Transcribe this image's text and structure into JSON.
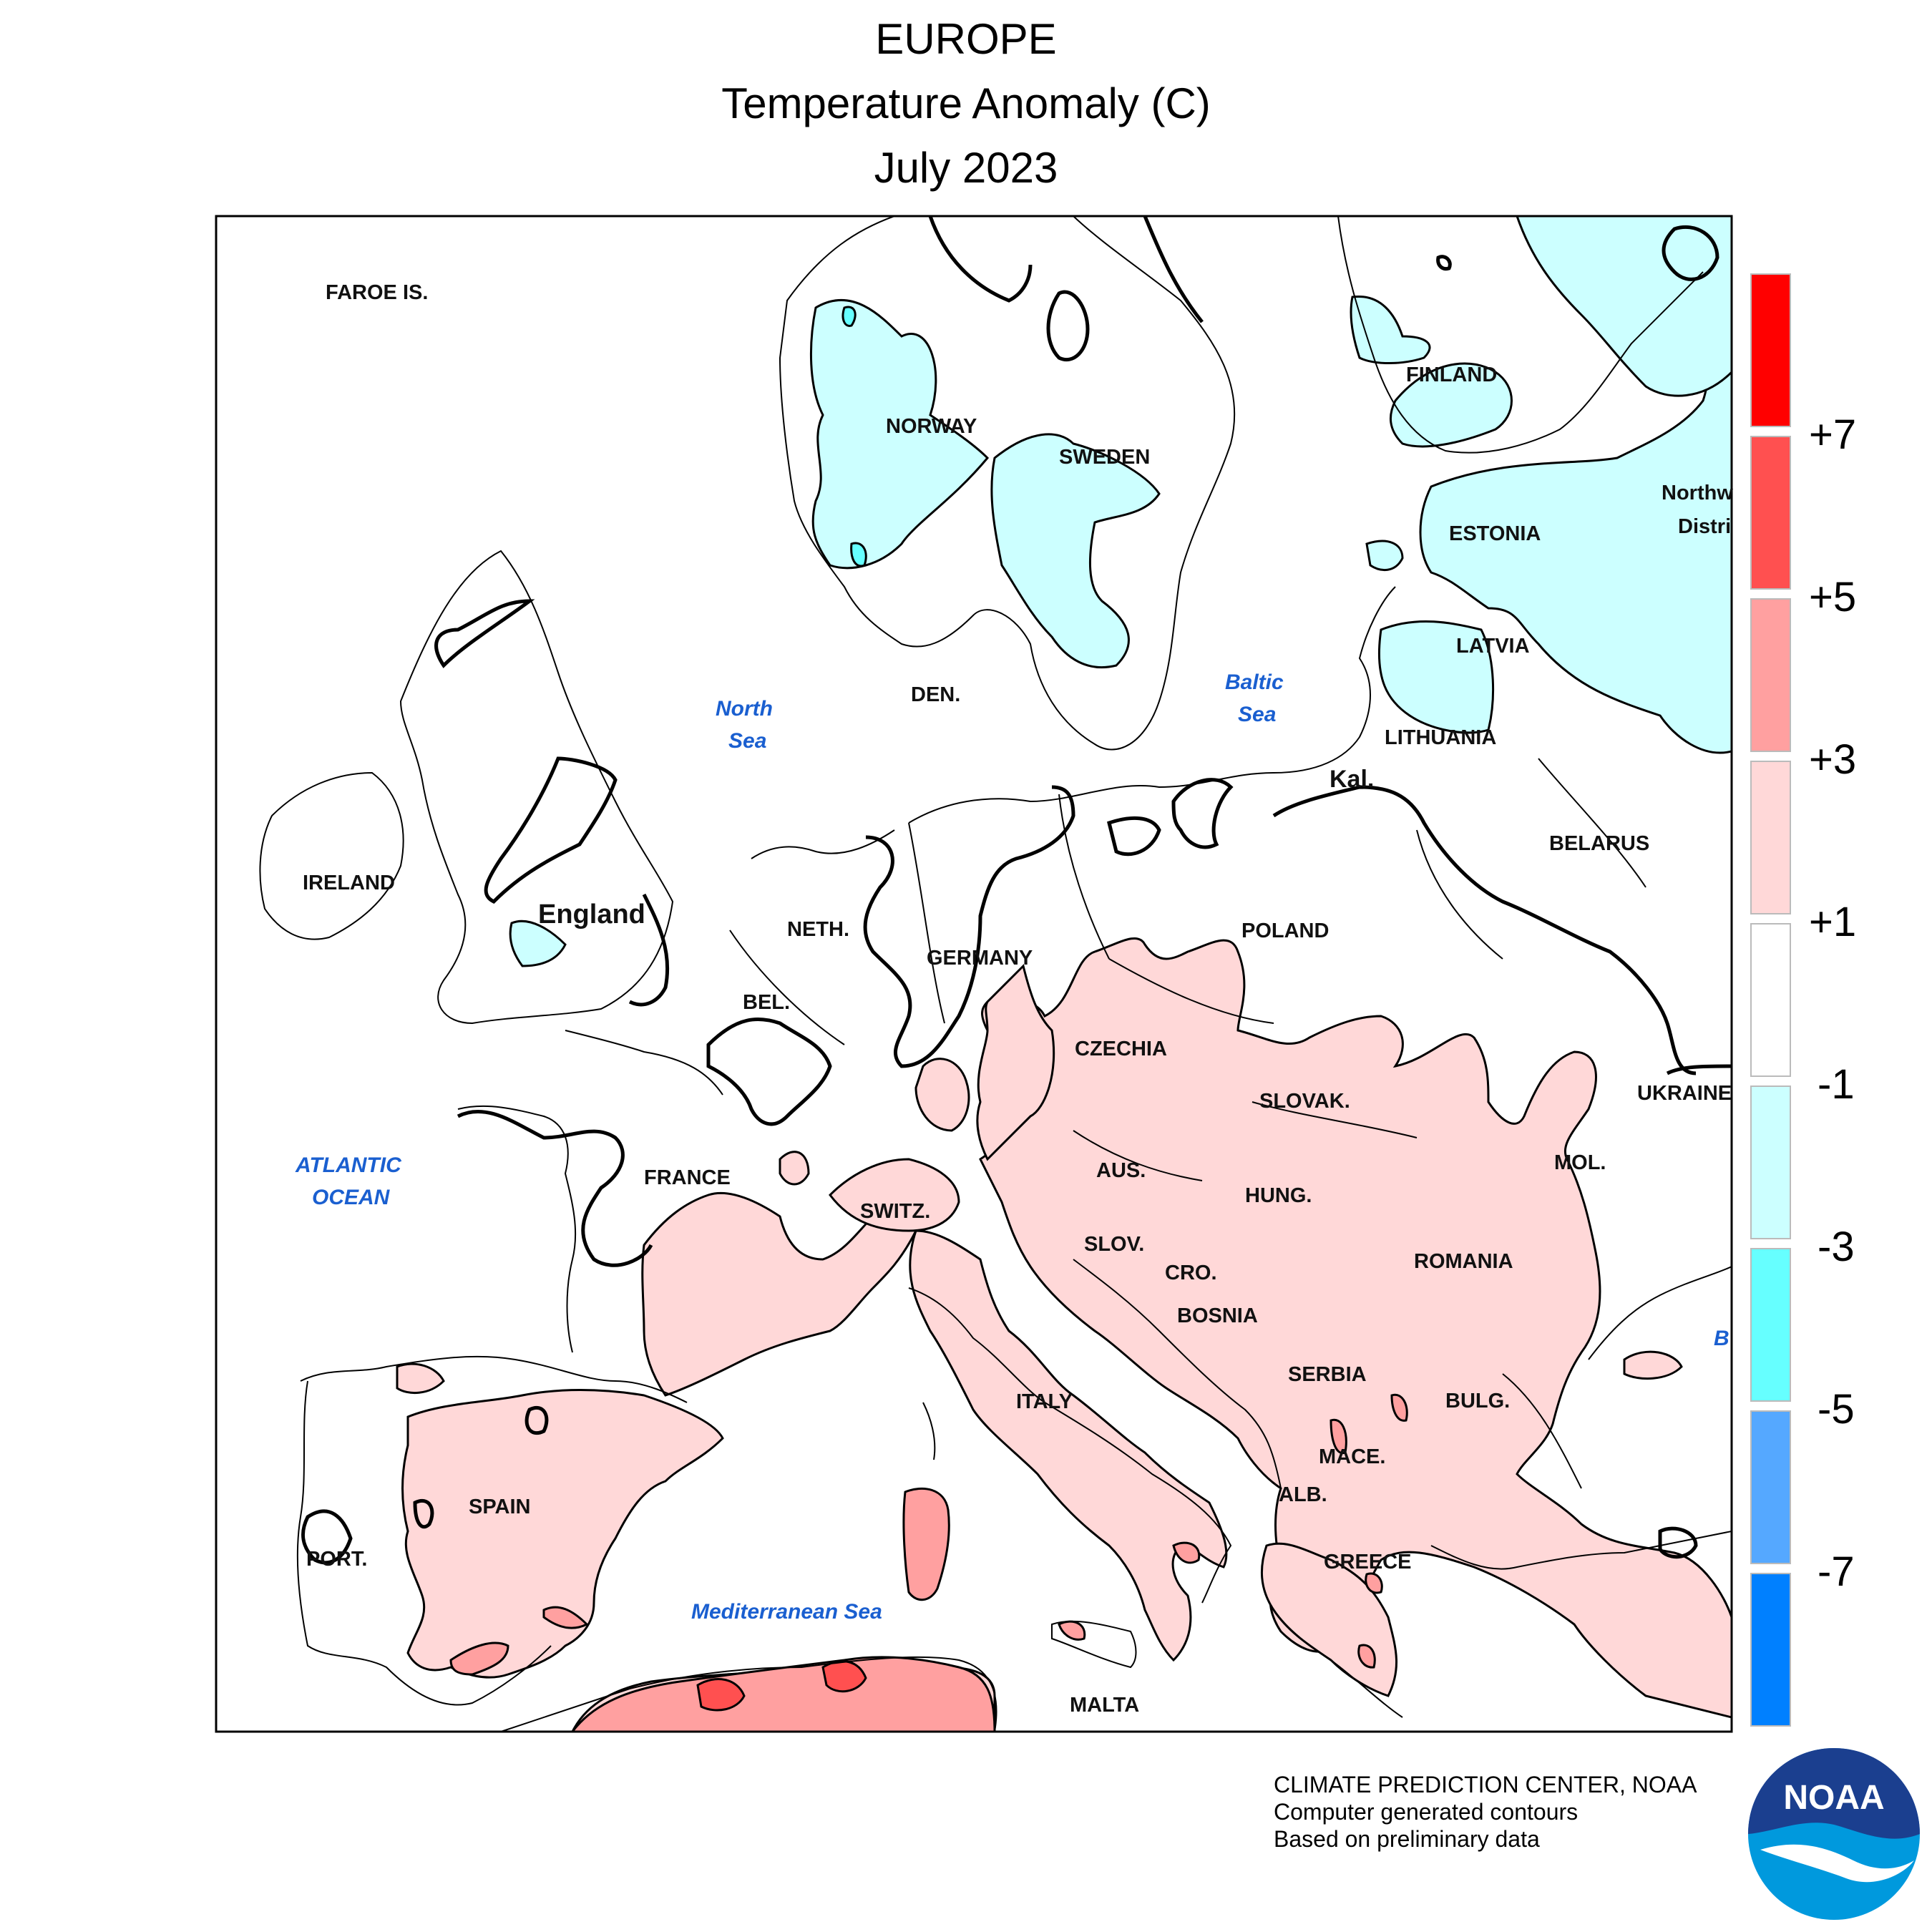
{
  "title": {
    "line1": "EUROPE",
    "line2": "Temperature Anomaly (C)",
    "line3": "July 2023"
  },
  "map_labels": {
    "faroe": "FAROE IS.",
    "norway": "NORWAY",
    "sweden": "SWEDEN",
    "finland": "FINLAND",
    "estonia": "ESTONIA",
    "latvia": "LATVIA",
    "lithuania": "LITHUANIA",
    "belarus": "BELARUS",
    "northwest_1": "Northw",
    "northwest_2": "Distri",
    "ukraine": "UKRAINE",
    "moldova": "MOL.",
    "romania": "ROMANIA",
    "bulgaria": "BULG.",
    "greece": "GREECE",
    "macedonia": "MACE.",
    "albania": "ALB.",
    "serbia": "SERBIA",
    "bosnia": "BOSNIA",
    "croatia": "CRO.",
    "slovenia": "SLOV.",
    "hungary": "HUNG.",
    "slovakia": "SLOVAK.",
    "austria": "AUS.",
    "czechia": "CZECHIA",
    "poland": "POLAND",
    "kaliningrad": "Kal.",
    "germany": "GERMANY",
    "denmark": "DEN.",
    "netherlands": "NETH.",
    "belgium": "BEL.",
    "france": "FRANCE",
    "switzerland": "SWITZ.",
    "italy": "ITALY",
    "malta": "MALTA",
    "spain": "SPAIN",
    "portugal": "PORT.",
    "ireland": "IRELAND",
    "england": "England",
    "black_sea_partial": "B"
  },
  "sea_labels": {
    "north_sea_1": "North",
    "north_sea_2": "Sea",
    "baltic_1": "Baltic",
    "baltic_2": "Sea",
    "atlantic_1": "ATLANTIC",
    "atlantic_2": "OCEAN",
    "mediterranean": "Mediterranean Sea"
  },
  "legend": {
    "ticks": [
      "+7",
      "+5",
      "+3",
      "+1",
      "-1",
      "-3",
      "-5",
      "-7"
    ],
    "colors": [
      "#ff0000",
      "#ff5050",
      "#ffa0a0",
      "#ffd8d8",
      "#ffffff",
      "#ccffff",
      "#66ffff",
      "#55a8ff",
      "#0080ff"
    ]
  },
  "colors": {
    "warm_1_3": "#ffd8d8",
    "warm_3_5": "#ffa0a0",
    "warm_5_7": "#ff5050",
    "cool_1_3": "#ccffff",
    "cool_3_5": "#66ffff"
  },
  "credits": {
    "line1": "CLIMATE PREDICTION CENTER, NOAA",
    "line2": "Computer generated contours",
    "line3": "Based on preliminary data"
  },
  "logo": {
    "text": "NOAA"
  }
}
